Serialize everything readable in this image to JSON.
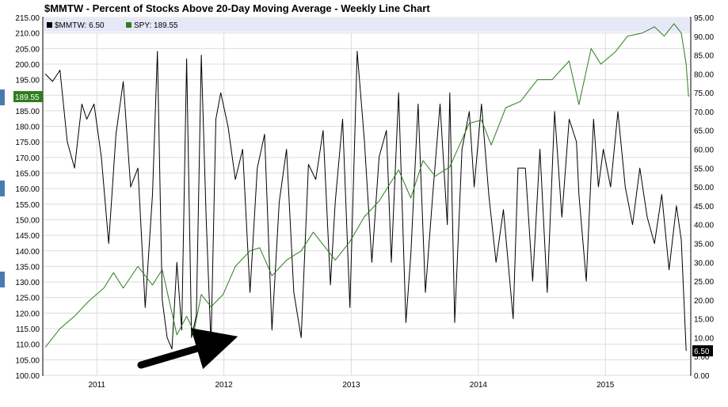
{
  "chart_data": {
    "type": "line",
    "title": "$MMTW - Percent of Stocks Above 20-Day Moving Average - Weekly Line Chart",
    "x_range": [
      "2010-08-01",
      "2015-09-01"
    ],
    "x_tick_labels": [
      "2011",
      "2012",
      "2013",
      "2014",
      "2015"
    ],
    "x_tick_dates": [
      "2011-01-01",
      "2012-01-01",
      "2013-01-01",
      "2014-01-01",
      "2015-01-01"
    ],
    "y_left_range": [
      100,
      215
    ],
    "y_left_ticks": [
      "100.00",
      "105.00",
      "110.00",
      "115.00",
      "120.00",
      "125.00",
      "130.00",
      "135.00",
      "140.00",
      "145.00",
      "150.00",
      "155.00",
      "160.00",
      "165.00",
      "170.00",
      "175.00",
      "180.00",
      "185.00",
      "190.00",
      "195.00",
      "200.00",
      "205.00",
      "210.00",
      "215.00"
    ],
    "y_right_range": [
      0,
      95
    ],
    "y_right_ticks": [
      "0.00",
      "5.00",
      "10.00",
      "15.00",
      "20.00",
      "25.00",
      "30.00",
      "35.00",
      "40.00",
      "45.00",
      "50.00",
      "55.00",
      "60.00",
      "65.00",
      "70.00",
      "75.00",
      "80.00",
      "85.00",
      "90.00",
      "95.00"
    ],
    "grid": true,
    "legend_position": "top-left",
    "legend": [
      {
        "label": "$MMTW: 6.50",
        "color": "#000000"
      },
      {
        "label": "SPY: 189.55",
        "color": "#2e7d1e"
      }
    ],
    "last_value_tags": {
      "left": "189.55",
      "right": "6.50"
    },
    "annotation": "arrow",
    "series": [
      {
        "key": "mmtw",
        "axis": "right",
        "color": "#000000",
        "x": [
          "2010-08-06",
          "2010-08-27",
          "2010-09-17",
          "2010-10-08",
          "2010-10-29",
          "2010-11-19",
          "2010-12-03",
          "2010-12-24",
          "2011-01-14",
          "2011-02-04",
          "2011-02-25",
          "2011-03-18",
          "2011-04-08",
          "2011-04-29",
          "2011-05-20",
          "2011-06-10",
          "2011-06-24",
          "2011-07-08",
          "2011-07-22",
          "2011-08-05",
          "2011-08-19",
          "2011-09-02",
          "2011-09-16",
          "2011-09-30",
          "2011-10-14",
          "2011-10-28",
          "2011-11-11",
          "2011-11-25",
          "2011-12-09",
          "2011-12-23",
          "2012-01-13",
          "2012-02-03",
          "2012-02-24",
          "2012-03-16",
          "2012-04-06",
          "2012-04-27",
          "2012-05-18",
          "2012-06-08",
          "2012-06-29",
          "2012-07-20",
          "2012-08-10",
          "2012-08-31",
          "2012-09-21",
          "2012-10-12",
          "2012-11-02",
          "2012-11-16",
          "2012-12-07",
          "2012-12-28",
          "2013-01-18",
          "2013-02-08",
          "2013-03-01",
          "2013-03-22",
          "2013-04-12",
          "2013-04-26",
          "2013-05-17",
          "2013-06-07",
          "2013-06-21",
          "2013-07-12",
          "2013-08-02",
          "2013-08-23",
          "2013-09-13",
          "2013-10-04",
          "2013-10-11",
          "2013-10-25",
          "2013-11-15",
          "2013-12-06",
          "2013-12-20",
          "2014-01-10",
          "2014-01-31",
          "2014-02-21",
          "2014-03-14",
          "2014-04-11",
          "2014-04-25",
          "2014-05-16",
          "2014-06-06",
          "2014-06-27",
          "2014-07-18",
          "2014-08-08",
          "2014-08-29",
          "2014-09-19",
          "2014-10-10",
          "2014-10-17",
          "2014-11-07",
          "2014-11-28",
          "2014-12-12",
          "2014-12-26",
          "2015-01-16",
          "2015-02-06",
          "2015-02-27",
          "2015-03-20",
          "2015-04-10",
          "2015-05-01",
          "2015-05-22",
          "2015-06-12",
          "2015-07-03",
          "2015-07-24",
          "2015-08-07",
          "2015-08-21"
        ],
        "values": [
          80,
          78,
          81,
          62,
          55,
          72,
          68,
          72,
          58,
          35,
          64,
          78,
          50,
          55,
          18,
          48,
          86,
          20,
          10,
          7,
          30,
          12,
          84,
          10,
          16,
          85,
          42,
          8,
          68,
          75,
          66,
          52,
          60,
          22,
          55,
          64,
          12,
          46,
          60,
          22,
          10,
          56,
          52,
          65,
          24,
          46,
          68,
          18,
          86,
          62,
          30,
          58,
          65,
          30,
          75,
          14,
          32,
          72,
          22,
          48,
          72,
          40,
          75,
          14,
          60,
          70,
          50,
          72,
          48,
          30,
          44,
          15,
          55,
          55,
          25,
          60,
          22,
          70,
          42,
          68,
          62,
          48,
          25,
          68,
          50,
          60,
          50,
          70,
          50,
          40,
          55,
          42,
          35,
          48,
          28,
          45,
          36,
          6.5
        ]
      },
      {
        "key": "spy",
        "axis": "left",
        "color": "#2e7d1e",
        "x": [
          "2010-08-06",
          "2010-09-17",
          "2010-10-29",
          "2010-12-10",
          "2011-01-21",
          "2011-02-18",
          "2011-03-18",
          "2011-04-29",
          "2011-06-10",
          "2011-07-08",
          "2011-08-05",
          "2011-08-19",
          "2011-09-16",
          "2011-10-07",
          "2011-10-28",
          "2011-11-25",
          "2011-12-30",
          "2012-02-03",
          "2012-03-16",
          "2012-04-13",
          "2012-05-18",
          "2012-06-29",
          "2012-08-10",
          "2012-09-14",
          "2012-11-16",
          "2012-12-28",
          "2013-02-08",
          "2013-03-22",
          "2013-05-17",
          "2013-06-21",
          "2013-07-26",
          "2013-08-30",
          "2013-10-11",
          "2013-12-06",
          "2014-01-10",
          "2014-02-07",
          "2014-03-21",
          "2014-05-02",
          "2014-06-20",
          "2014-08-01",
          "2014-09-19",
          "2014-10-17",
          "2014-11-21",
          "2014-12-19",
          "2015-01-30",
          "2015-03-06",
          "2015-04-17",
          "2015-05-22",
          "2015-06-19",
          "2015-07-17",
          "2015-08-07",
          "2015-08-21",
          "2015-08-28"
        ],
        "values": [
          109,
          115,
          119,
          124,
          128,
          133,
          128,
          135,
          129,
          134,
          120,
          113,
          119,
          114,
          126,
          122,
          126,
          135,
          140,
          141,
          132,
          137,
          140,
          146,
          137,
          143,
          151,
          156,
          166,
          157,
          169,
          164,
          167,
          181,
          182,
          174,
          186,
          188,
          195,
          195,
          201,
          187,
          205,
          200,
          204,
          209,
          210,
          212,
          209,
          213,
          210,
          200,
          189.55
        ]
      }
    ]
  }
}
